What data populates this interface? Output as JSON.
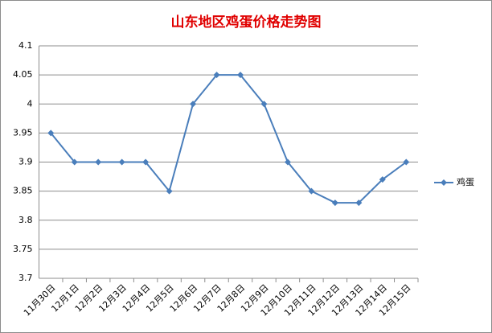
{
  "chart_data": {
    "type": "line",
    "title": "山东地区鸡蛋价格走势图",
    "categories": [
      "11月30日",
      "12月1日",
      "12月2日",
      "12月3日",
      "12月4日",
      "12月5日",
      "12月6日",
      "12月7日",
      "12月8日",
      "12月9日",
      "12月10日",
      "12月11日",
      "12月12日",
      "12月13日",
      "12月14日",
      "12月15日"
    ],
    "series": [
      {
        "name": "鸡蛋",
        "color": "#4a7ebb",
        "values": [
          3.95,
          3.9,
          3.9,
          3.9,
          3.9,
          3.85,
          4.0,
          4.05,
          4.05,
          4.0,
          3.9,
          3.85,
          3.83,
          3.83,
          3.87,
          3.9
        ]
      }
    ],
    "ylim": [
      3.7,
      4.1
    ],
    "yticks": [
      3.7,
      3.75,
      3.8,
      3.85,
      3.9,
      3.95,
      4,
      4.05,
      4.1
    ],
    "grid": true,
    "legend": "right"
  }
}
